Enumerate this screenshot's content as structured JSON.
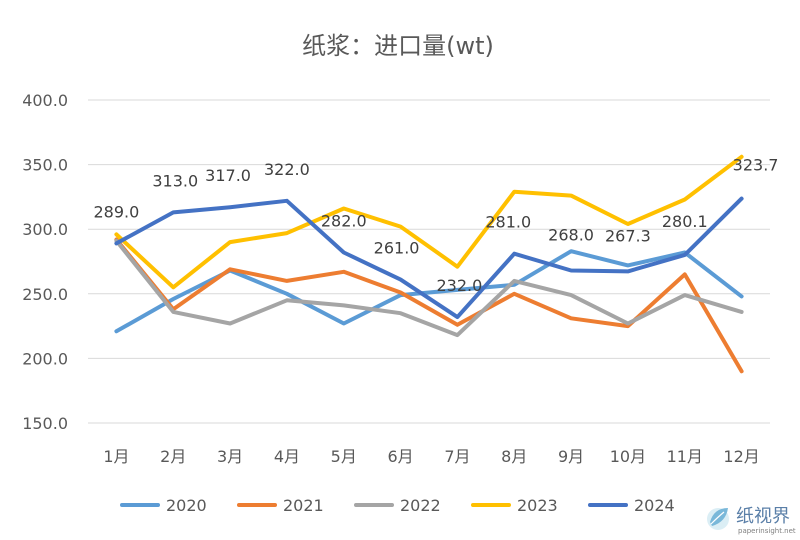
{
  "chart_data": {
    "type": "line",
    "title": "纸浆：进口量(wt)",
    "xlabel": "",
    "ylabel": "",
    "categories": [
      "1月",
      "2月",
      "3月",
      "4月",
      "5月",
      "6月",
      "7月",
      "8月",
      "9月",
      "10月",
      "11月",
      "12月"
    ],
    "y_ticks": [
      "150.0",
      "200.0",
      "250.0",
      "300.0",
      "350.0",
      "400.0"
    ],
    "ylim": [
      150,
      400
    ],
    "grid": true,
    "legend_position": "bottom",
    "series": [
      {
        "name": "2020",
        "color": "#5B9BD5",
        "values": [
          221,
          246,
          268,
          250,
          227,
          249,
          253,
          257,
          283,
          272,
          282,
          248
        ]
      },
      {
        "name": "2021",
        "color": "#ED7D31",
        "values": [
          292,
          238,
          269,
          260,
          267,
          251,
          226,
          250,
          231,
          225,
          265,
          190
        ]
      },
      {
        "name": "2022",
        "color": "#A5A5A5",
        "values": [
          291,
          236,
          227,
          245,
          241,
          235,
          218,
          260,
          249,
          227,
          249,
          236
        ]
      },
      {
        "name": "2023",
        "color": "#FFC000",
        "values": [
          296,
          255,
          290,
          297,
          316,
          302,
          271,
          329,
          326,
          304,
          323,
          356
        ]
      },
      {
        "name": "2024",
        "color": "#4472C4",
        "values": [
          289.0,
          313.0,
          317.0,
          322.0,
          282.0,
          261.0,
          232.0,
          281.0,
          268.0,
          267.3,
          280.1,
          323.7
        ]
      }
    ],
    "data_labels": {
      "series": "2024",
      "labels": [
        "289.0",
        "313.0",
        "317.0",
        "322.0",
        "282.0",
        "261.0",
        "232.0",
        "281.0",
        "268.0",
        "267.3",
        "280.1",
        "323.7"
      ]
    }
  },
  "watermark": {
    "text": "纸视界",
    "sub": "paperinsight.net",
    "icon": "leaf-logo-icon"
  }
}
